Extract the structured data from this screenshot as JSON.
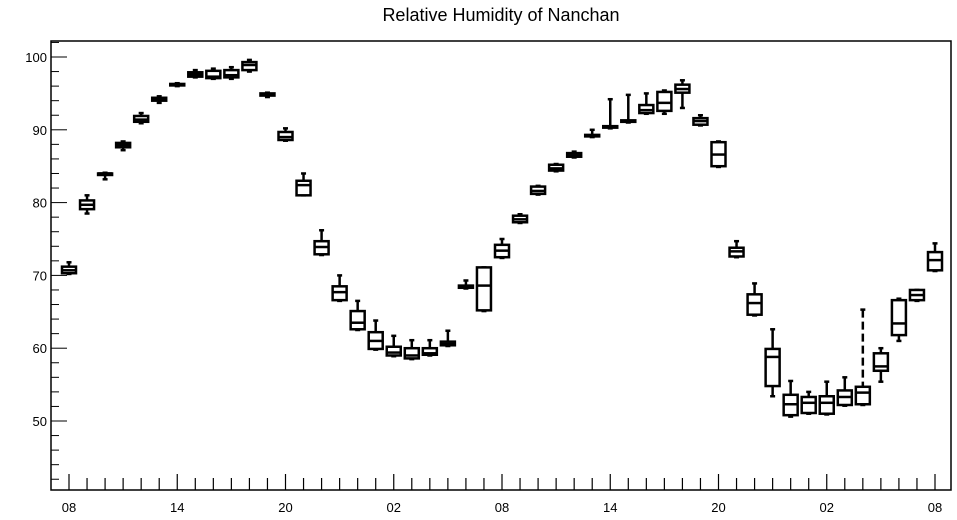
{
  "chart_data": {
    "type": "box",
    "title": "Relative Humidity of Nanchan",
    "xlabel": "",
    "ylabel": "",
    "xlim": [
      0,
      48
    ],
    "ylim": [
      40,
      102
    ],
    "grid": false,
    "legend": "none",
    "x_tick_labels": [
      {
        "x": 0,
        "label": "08"
      },
      {
        "x": 6,
        "label": "14"
      },
      {
        "x": 12,
        "label": "20"
      },
      {
        "x": 18,
        "label": "02"
      },
      {
        "x": 24,
        "label": "08"
      },
      {
        "x": 30,
        "label": "14"
      },
      {
        "x": 36,
        "label": "20"
      },
      {
        "x": 42,
        "label": "02"
      },
      {
        "x": 48,
        "label": "08"
      }
    ],
    "y_ticks": [
      50,
      60,
      70,
      80,
      90,
      100
    ],
    "boxes": [
      {
        "x": 0,
        "min": 70.2,
        "q1": 70.3,
        "median": 70.7,
        "q3": 71.2,
        "max": 71.8
      },
      {
        "x": 1,
        "min": 78.5,
        "q1": 79.1,
        "median": 79.7,
        "q3": 80.3,
        "max": 81.0
      },
      {
        "x": 2,
        "min": 83.2,
        "q1": 83.8,
        "median": 84.0,
        "q3": 84.0,
        "max": 84.1
      },
      {
        "x": 3,
        "min": 87.2,
        "q1": 87.6,
        "median": 87.9,
        "q3": 88.2,
        "max": 88.4
      },
      {
        "x": 4,
        "min": 90.9,
        "q1": 91.1,
        "median": 91.4,
        "q3": 91.9,
        "max": 92.3
      },
      {
        "x": 5,
        "min": 93.7,
        "q1": 94.0,
        "median": 94.2,
        "q3": 94.4,
        "max": 94.6
      },
      {
        "x": 6,
        "min": 96.0,
        "q1": 96.1,
        "median": 96.2,
        "q3": 96.3,
        "max": 96.4
      },
      {
        "x": 7,
        "min": 97.2,
        "q1": 97.3,
        "median": 97.6,
        "q3": 97.9,
        "max": 98.2
      },
      {
        "x": 8,
        "min": 97.0,
        "q1": 97.1,
        "median": 97.3,
        "q3": 98.1,
        "max": 98.4
      },
      {
        "x": 9,
        "min": 97.0,
        "q1": 97.2,
        "median": 97.5,
        "q3": 98.2,
        "max": 98.6
      },
      {
        "x": 10,
        "min": 98.0,
        "q1": 98.2,
        "median": 98.9,
        "q3": 99.3,
        "max": 99.6
      },
      {
        "x": 11,
        "min": 94.5,
        "q1": 94.7,
        "median": 94.9,
        "q3": 95.0,
        "max": 95.1
      },
      {
        "x": 12,
        "min": 88.5,
        "q1": 88.6,
        "median": 89.0,
        "q3": 89.7,
        "max": 90.2
      },
      {
        "x": 13,
        "min": 81.0,
        "q1": 81.0,
        "median": 82.4,
        "q3": 83.0,
        "max": 84.0
      },
      {
        "x": 14,
        "min": 72.8,
        "q1": 72.9,
        "median": 73.9,
        "q3": 74.7,
        "max": 76.2
      },
      {
        "x": 15,
        "min": 66.5,
        "q1": 66.6,
        "median": 67.7,
        "q3": 68.5,
        "max": 70.0
      },
      {
        "x": 16,
        "min": 62.5,
        "q1": 62.6,
        "median": 63.5,
        "q3": 65.1,
        "max": 66.5
      },
      {
        "x": 17,
        "min": 59.8,
        "q1": 59.9,
        "median": 61.0,
        "q3": 62.2,
        "max": 63.8
      },
      {
        "x": 18,
        "min": 58.9,
        "q1": 59.0,
        "median": 59.4,
        "q3": 60.2,
        "max": 61.7
      },
      {
        "x": 19,
        "min": 58.5,
        "q1": 58.6,
        "median": 59.0,
        "q3": 60.0,
        "max": 61.1
      },
      {
        "x": 20,
        "min": 59.0,
        "q1": 59.1,
        "median": 59.3,
        "q3": 60.0,
        "max": 61.1
      },
      {
        "x": 21,
        "min": 60.3,
        "q1": 60.4,
        "median": 60.6,
        "q3": 60.9,
        "max": 62.4
      },
      {
        "x": 22,
        "min": 68.2,
        "q1": 68.3,
        "median": 68.5,
        "q3": 68.6,
        "max": 69.3
      },
      {
        "x": 23,
        "min": 65.1,
        "q1": 65.2,
        "median": 68.6,
        "q3": 71.1,
        "max": 71.1
      },
      {
        "x": 24,
        "min": 72.4,
        "q1": 72.5,
        "median": 73.4,
        "q3": 74.2,
        "max": 75.0
      },
      {
        "x": 25,
        "min": 77.2,
        "q1": 77.3,
        "median": 77.7,
        "q3": 78.2,
        "max": 78.4
      },
      {
        "x": 26,
        "min": 81.1,
        "q1": 81.2,
        "median": 81.6,
        "q3": 82.2,
        "max": 82.3
      },
      {
        "x": 27,
        "min": 84.3,
        "q1": 84.4,
        "median": 84.7,
        "q3": 85.2,
        "max": 85.3
      },
      {
        "x": 28,
        "min": 86.2,
        "q1": 86.3,
        "median": 86.5,
        "q3": 86.8,
        "max": 87.0
      },
      {
        "x": 29,
        "min": 89.0,
        "q1": 89.1,
        "median": 89.2,
        "q3": 89.3,
        "max": 90.0
      },
      {
        "x": 30,
        "min": 90.2,
        "q1": 90.3,
        "median": 90.4,
        "q3": 90.5,
        "max": 94.2
      },
      {
        "x": 31,
        "min": 91.0,
        "q1": 91.1,
        "median": 91.2,
        "q3": 91.3,
        "max": 94.8
      },
      {
        "x": 32,
        "min": 92.2,
        "q1": 92.3,
        "median": 92.7,
        "q3": 93.4,
        "max": 95.0
      },
      {
        "x": 33,
        "min": 92.2,
        "q1": 92.6,
        "median": 93.7,
        "q3": 95.2,
        "max": 95.4
      },
      {
        "x": 34,
        "min": 93.0,
        "q1": 95.1,
        "median": 95.6,
        "q3": 96.2,
        "max": 96.8
      },
      {
        "x": 35,
        "min": 90.6,
        "q1": 90.7,
        "median": 91.2,
        "q3": 91.6,
        "max": 92.0
      },
      {
        "x": 36,
        "min": 84.9,
        "q1": 85.0,
        "median": 86.6,
        "q3": 88.3,
        "max": 88.4
      },
      {
        "x": 37,
        "min": 72.5,
        "q1": 72.6,
        "median": 73.3,
        "q3": 73.8,
        "max": 74.7
      },
      {
        "x": 38,
        "min": 64.5,
        "q1": 64.6,
        "median": 66.2,
        "q3": 67.4,
        "max": 68.9
      },
      {
        "x": 39,
        "min": 53.4,
        "q1": 54.8,
        "median": 58.8,
        "q3": 59.9,
        "max": 62.6
      },
      {
        "x": 40,
        "min": 50.6,
        "q1": 50.8,
        "median": 52.3,
        "q3": 53.6,
        "max": 55.5
      },
      {
        "x": 41,
        "min": 51.0,
        "q1": 51.1,
        "median": 52.5,
        "q3": 53.3,
        "max": 54.0
      },
      {
        "x": 42,
        "min": 50.9,
        "q1": 51.0,
        "median": 52.5,
        "q3": 53.4,
        "max": 55.4
      },
      {
        "x": 43,
        "min": 52.1,
        "q1": 52.2,
        "median": 53.3,
        "q3": 54.2,
        "max": 56.0
      },
      {
        "x": 44,
        "min": 52.2,
        "q1": 52.3,
        "median": 53.9,
        "q3": 54.7,
        "max": 65.3
      },
      {
        "x": 45,
        "min": 55.4,
        "q1": 56.9,
        "median": 57.5,
        "q3": 59.3,
        "max": 60.0
      },
      {
        "x": 46,
        "min": 61.0,
        "q1": 61.8,
        "median": 63.4,
        "q3": 66.6,
        "max": 66.8
      },
      {
        "x": 47,
        "min": 66.5,
        "q1": 66.6,
        "median": 67.3,
        "q3": 68.0,
        "max": 68.0
      },
      {
        "x": 48,
        "min": 70.6,
        "q1": 70.7,
        "median": 72.1,
        "q3": 73.2,
        "max": 74.4
      }
    ]
  }
}
